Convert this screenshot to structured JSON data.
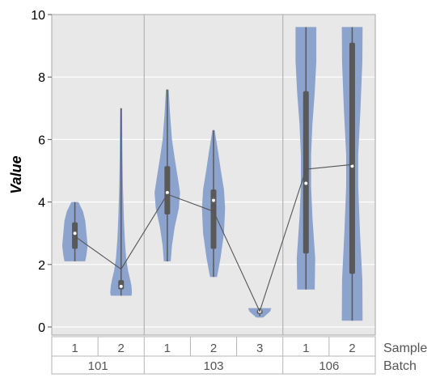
{
  "chart_data": {
    "type": "violin",
    "ylabel": "Value",
    "ylim": [
      0,
      10
    ],
    "yticks": [
      "0",
      "2",
      "4",
      "6",
      "8",
      "10"
    ],
    "grid": true,
    "row_labels": {
      "sample": "Sample",
      "batch": "Batch"
    },
    "groups": [
      {
        "batch": "101",
        "samples": [
          {
            "sample": "1",
            "min": 2.1,
            "q1": 2.5,
            "median": 3.0,
            "q3": 3.35,
            "max": 4.0,
            "mean": 2.9,
            "profile": [
              [
                2.1,
                0.45
              ],
              [
                2.3,
                0.5
              ],
              [
                2.6,
                0.55
              ],
              [
                3.0,
                0.5
              ],
              [
                3.4,
                0.45
              ],
              [
                3.7,
                0.35
              ],
              [
                4.0,
                0.15
              ]
            ]
          },
          {
            "sample": "2",
            "min": 1.0,
            "q1": 1.2,
            "median": 1.3,
            "q3": 1.5,
            "max": 7.0,
            "mean": 1.85,
            "profile": [
              [
                1.0,
                0.45
              ],
              [
                1.1,
                0.47
              ],
              [
                1.3,
                0.45
              ],
              [
                1.5,
                0.4
              ],
              [
                1.8,
                0.3
              ],
              [
                2.2,
                0.22
              ],
              [
                2.8,
                0.16
              ],
              [
                3.5,
                0.12
              ],
              [
                4.5,
                0.08
              ],
              [
                5.5,
                0.06
              ],
              [
                6.3,
                0.05
              ],
              [
                7.0,
                0.04
              ]
            ]
          }
        ]
      },
      {
        "batch": "103",
        "samples": [
          {
            "sample": "1",
            "min": 2.1,
            "q1": 3.6,
            "median": 4.3,
            "q3": 5.15,
            "max": 7.6,
            "mean": 4.25,
            "profile": [
              [
                2.1,
                0.15
              ],
              [
                2.6,
                0.2
              ],
              [
                3.2,
                0.32
              ],
              [
                3.8,
                0.5
              ],
              [
                4.3,
                0.55
              ],
              [
                4.8,
                0.45
              ],
              [
                5.4,
                0.32
              ],
              [
                6.0,
                0.2
              ],
              [
                6.8,
                0.12
              ],
              [
                7.6,
                0.06
              ]
            ]
          },
          {
            "sample": "2",
            "min": 1.6,
            "q1": 2.5,
            "median": 4.05,
            "q3": 4.4,
            "max": 6.3,
            "mean": 3.7,
            "profile": [
              [
                1.6,
                0.15
              ],
              [
                2.2,
                0.3
              ],
              [
                3.0,
                0.45
              ],
              [
                3.8,
                0.5
              ],
              [
                4.4,
                0.45
              ],
              [
                5.0,
                0.32
              ],
              [
                5.6,
                0.2
              ],
              [
                6.3,
                0.05
              ]
            ]
          },
          {
            "sample": "3",
            "min": 0.35,
            "q1": 0.42,
            "median": 0.5,
            "q3": 0.55,
            "max": 0.6,
            "mean": 0.5,
            "profile": [
              [
                0.3,
                0.15
              ],
              [
                0.4,
                0.3
              ],
              [
                0.5,
                0.45
              ],
              [
                0.6,
                0.5
              ]
            ]
          }
        ]
      },
      {
        "batch": "106",
        "samples": [
          {
            "sample": "1",
            "min": 1.2,
            "q1": 2.35,
            "median": 4.6,
            "q3": 7.55,
            "max": 9.6,
            "mean": 5.05,
            "profile": [
              [
                1.2,
                0.38
              ],
              [
                2.2,
                0.4
              ],
              [
                3.5,
                0.28
              ],
              [
                4.5,
                0.22
              ],
              [
                5.5,
                0.22
              ],
              [
                6.5,
                0.28
              ],
              [
                7.5,
                0.38
              ],
              [
                8.5,
                0.45
              ],
              [
                9.6,
                0.45
              ]
            ]
          },
          {
            "sample": "2",
            "min": 0.2,
            "q1": 1.7,
            "median": 5.15,
            "q3": 9.1,
            "max": 9.6,
            "mean": 5.2,
            "profile": [
              [
                0.2,
                0.45
              ],
              [
                1.5,
                0.44
              ],
              [
                3.0,
                0.34
              ],
              [
                4.5,
                0.26
              ],
              [
                5.5,
                0.26
              ],
              [
                7.0,
                0.36
              ],
              [
                8.5,
                0.44
              ],
              [
                9.6,
                0.45
              ]
            ]
          }
        ]
      }
    ],
    "colors": {
      "violin": "#8ca3cd",
      "box": "#595959",
      "median": "#ffffff",
      "mean_line": "#555555",
      "plot_bg": "#e8e8e8",
      "grid": "#ffffff",
      "border": "#b3b3b3"
    }
  }
}
